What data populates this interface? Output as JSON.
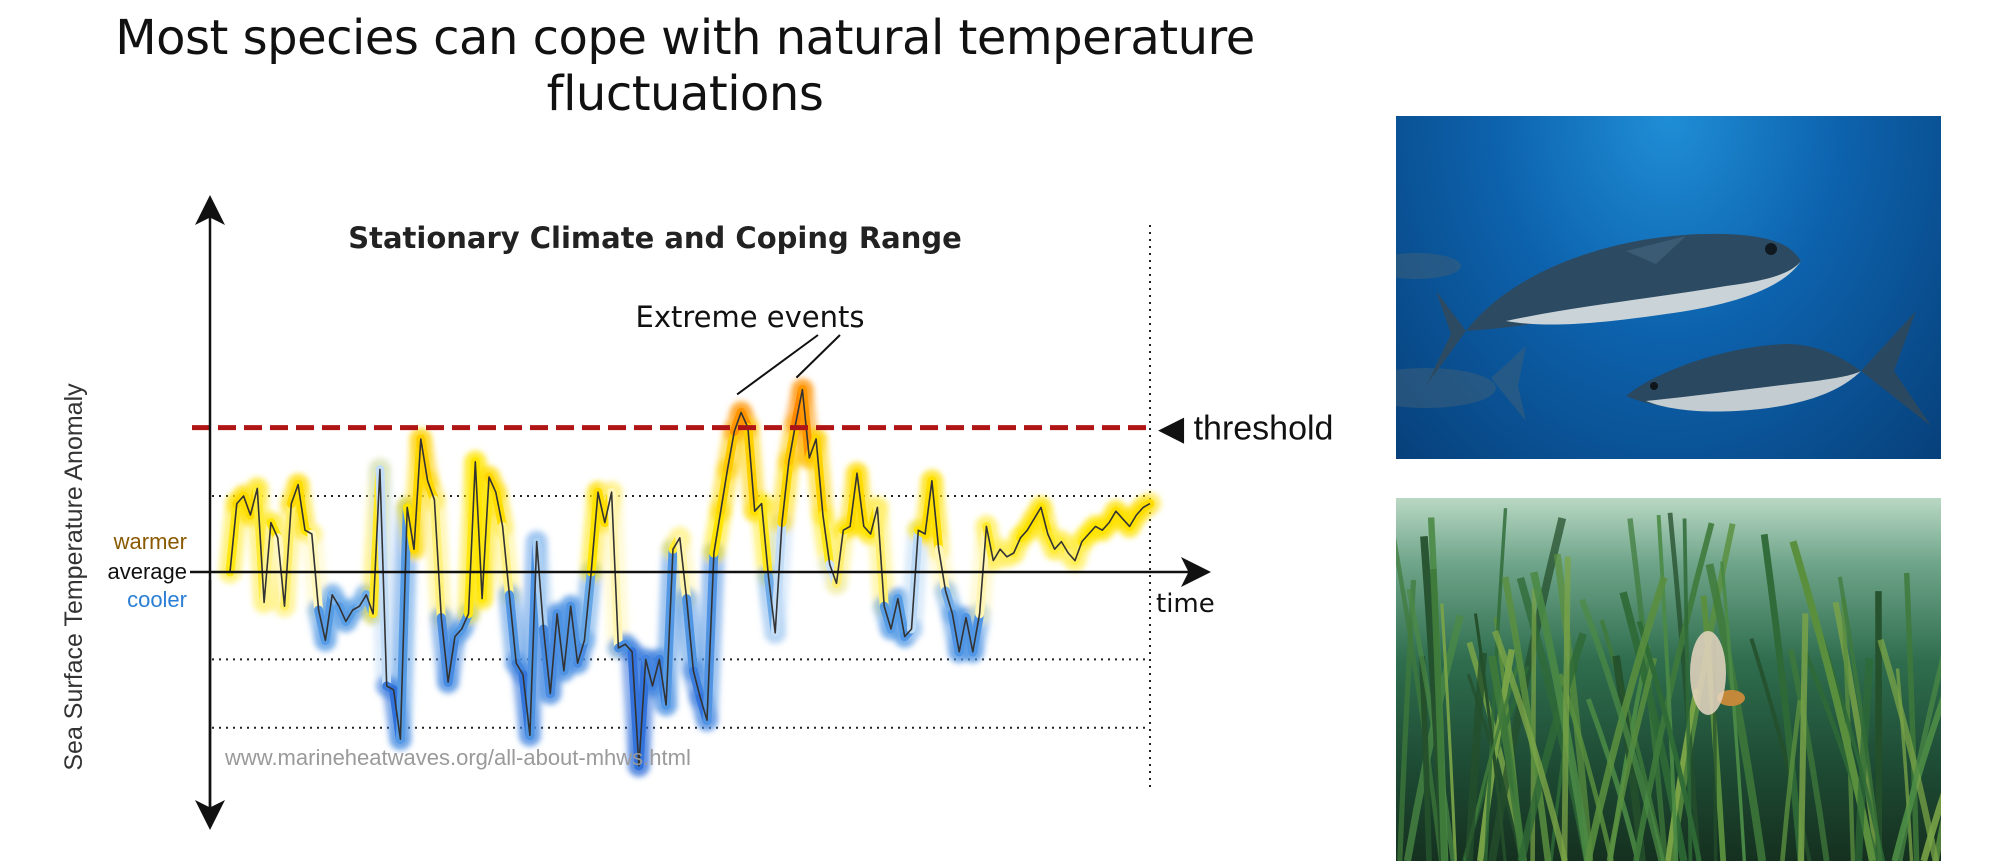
{
  "slide_title": "Most species can cope with natural temperature fluctuations",
  "chart_data": {
    "type": "line",
    "title": "Stationary Climate and Coping Range",
    "ylabel": "Sea Surface Temperature Anomaly",
    "xlabel": "time",
    "y_labels": {
      "warmer": "warmer",
      "average": "average",
      "cooler": "cooler"
    },
    "threshold_label": "◀ threshold",
    "annotation": "Extreme events",
    "source": "www.marineheatwaves.org/all-about-mhws.html",
    "threshold": 1.9,
    "reference_lines": [
      1.0,
      -1.15,
      -2.05
    ],
    "x": [
      0,
      1,
      2,
      3,
      4,
      5,
      6,
      7,
      8,
      9,
      10,
      11,
      12,
      13,
      14,
      15,
      16,
      17,
      18,
      19,
      20,
      21,
      22,
      23,
      24,
      25,
      26,
      27,
      28,
      29,
      30,
      31,
      32,
      33,
      34,
      35,
      36,
      37,
      38,
      39,
      40,
      41,
      42,
      43,
      44,
      45,
      46,
      47,
      48,
      49,
      50,
      51,
      52,
      53,
      54,
      55,
      56,
      57,
      58,
      59,
      60,
      61,
      62,
      63,
      64,
      65,
      66,
      67,
      68,
      69,
      70,
      71,
      72,
      73,
      74,
      75,
      76,
      77,
      78,
      79,
      80,
      81,
      82,
      83,
      84,
      85,
      86,
      87,
      88,
      89,
      90,
      91,
      92,
      93,
      94,
      95,
      96,
      97,
      98,
      99,
      100,
      101,
      102,
      103,
      104,
      105,
      106,
      107,
      108,
      109,
      110,
      111,
      112,
      113,
      114,
      115,
      116,
      117,
      118,
      119,
      120,
      121,
      122,
      123,
      124,
      125,
      126,
      127,
      128,
      129,
      130,
      131,
      132,
      133,
      134,
      135
    ],
    "values": [
      0.0,
      0.9,
      1.0,
      0.75,
      1.1,
      -0.4,
      0.65,
      0.45,
      -0.45,
      0.9,
      1.15,
      0.55,
      0.5,
      -0.5,
      -0.9,
      -0.3,
      -0.45,
      -0.65,
      -0.5,
      -0.45,
      -0.3,
      -0.55,
      1.35,
      -1.5,
      -1.55,
      -2.2,
      0.85,
      0.3,
      1.75,
      1.2,
      0.95,
      -0.6,
      -1.45,
      -0.85,
      -0.75,
      -0.55,
      1.45,
      -0.35,
      1.25,
      1.05,
      0.6,
      -0.3,
      -1.2,
      -1.35,
      -2.15,
      0.4,
      -0.75,
      -1.6,
      -0.55,
      -1.3,
      -0.45,
      -1.2,
      -0.9,
      0.0,
      1.05,
      0.65,
      1.05,
      -1.0,
      -0.95,
      -1.05,
      -2.55,
      -1.15,
      -1.5,
      -1.15,
      -1.75,
      0.3,
      0.45,
      -0.35,
      -1.3,
      -1.65,
      -1.95,
      0.25,
      0.8,
      1.35,
      1.85,
      2.1,
      1.9,
      0.8,
      0.9,
      -0.05,
      -0.8,
      0.65,
      1.45,
      1.95,
      2.4,
      1.5,
      1.75,
      0.75,
      0.1,
      -0.15,
      0.55,
      0.6,
      1.3,
      0.6,
      0.5,
      0.85,
      -0.45,
      -0.75,
      -0.35,
      -0.85,
      -0.75,
      0.55,
      0.5,
      1.2,
      0.3,
      -0.25,
      -0.55,
      -1.05,
      -0.6,
      -1.05,
      -0.55,
      0.6,
      0.15,
      0.3,
      0.2,
      0.25,
      0.45,
      0.55,
      0.7,
      0.85,
      0.5,
      0.3,
      0.4,
      0.25,
      0.15,
      0.4,
      0.5,
      0.6,
      0.55,
      0.65,
      0.8,
      0.7,
      0.6,
      0.75,
      0.85,
      0.9
    ],
    "ylim": [
      -3.2,
      4.5
    ],
    "grid": false,
    "colors": {
      "threshold": "#b01515",
      "warm": "#ffe600",
      "hot": "#ff7a00",
      "cool": "#5aa0e6",
      "cold": "#1f5cd6",
      "warmer_label": "#8a5a00",
      "cooler_label": "#2a7fd4",
      "source_text": "#9a9a9a"
    }
  },
  "images": [
    {
      "subject": "bluefin tuna swimming in open water"
    },
    {
      "subject": "seagrass meadow underwater with small fish"
    }
  ]
}
